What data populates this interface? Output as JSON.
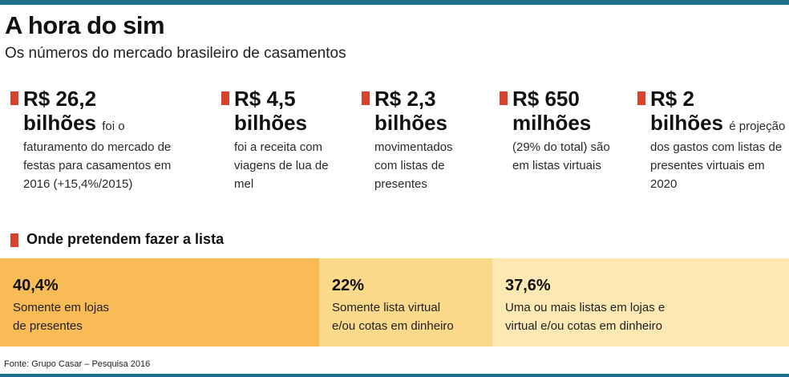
{
  "header": {
    "title": "A hora do sim",
    "subtitle": "Os números do mercado brasileiro de casamentos"
  },
  "stats": [
    {
      "value": "R$ 26,2",
      "unit": "bilhões",
      "desc_inline": "foi o",
      "desc": "faturamento do mercado de festas para casamentos em 2016 (+15,4%/2015)"
    },
    {
      "value": "R$ 4,5",
      "unit": "bilhões",
      "desc_inline": "",
      "desc": "foi a receita com viagens de lua de mel"
    },
    {
      "value": "R$ 2,3",
      "unit": "bilhões",
      "desc_inline": "",
      "desc": "movimentados com listas de presentes"
    },
    {
      "value": "R$ 650",
      "unit": "milhões",
      "desc_inline": "",
      "desc": "(29% do total) são em listas virtuais"
    },
    {
      "value": "R$ 2",
      "unit": "bilhões",
      "desc_inline": "é projeção",
      "desc": "dos gastos com listas de presentes virtuais em 2020"
    }
  ],
  "section": {
    "title": "Onde pretendem fazer a lista"
  },
  "chart_data": {
    "type": "bar",
    "orientation": "horizontal-stacked",
    "title": "Onde pretendem fazer a lista",
    "categories": [
      "Somente em lojas de presentes",
      "Somente lista virtual e/ou cotas em dinheiro",
      "Uma ou mais listas em lojas e virtual e/ou cotas em dinheiro"
    ],
    "values": [
      40.4,
      22,
      37.6
    ],
    "value_labels": [
      "40,4%",
      "22%",
      "37,6%"
    ],
    "label_lines": [
      "Somente em lojas\nde presentes",
      "Somente lista virtual\ne/ou cotas em dinheiro",
      "Uma ou mais listas em lojas e\nvirtual e/ou cotas em dinheiro"
    ],
    "colors": [
      "#f8bb55",
      "#fbd98a",
      "#fde7b3"
    ],
    "unit": "%",
    "total": 100
  },
  "footer": {
    "source": "Fonte: Grupo Casar – Pesquisa 2016"
  },
  "colors": {
    "accent_rule": "#1e6f86",
    "marker": "#d8432e"
  }
}
